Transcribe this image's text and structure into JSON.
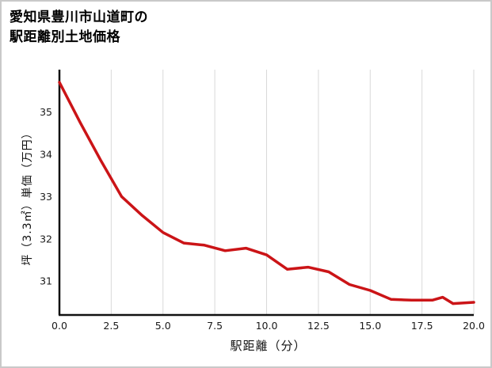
{
  "title": {
    "line1": "愛知県豊川市山道町の",
    "line2": "駅距離別土地価格"
  },
  "chart_data": {
    "type": "line",
    "title": "愛知県豊川市山道町の駅距離別土地価格",
    "xlabel": "駅距離（分）",
    "ylabel": "坪（3.3㎡）単価（万円）",
    "x": [
      0,
      1,
      2,
      3,
      4,
      5,
      6,
      7,
      8,
      9,
      10,
      11,
      12,
      13,
      14,
      15,
      16,
      17,
      18,
      18.5,
      19,
      20
    ],
    "y": [
      35.7,
      34.75,
      33.85,
      33.0,
      32.55,
      32.15,
      31.9,
      31.85,
      31.72,
      31.78,
      31.62,
      31.28,
      31.33,
      31.22,
      30.92,
      30.78,
      30.57,
      30.55,
      30.55,
      30.62,
      30.47,
      30.5
    ],
    "xlim": [
      0,
      20
    ],
    "ylim": [
      30.2,
      36.0
    ],
    "x_tick_values": [
      0,
      2.5,
      5,
      7.5,
      10,
      12.5,
      15,
      17.5,
      20
    ],
    "x_tick_labels": [
      "0.0",
      "2.5",
      "5.0",
      "7.5",
      "10.0",
      "12.5",
      "15.0",
      "17.5",
      "20.0"
    ],
    "y_tick_values": [
      31,
      32,
      33,
      34,
      35
    ],
    "y_tick_labels": [
      "31",
      "32",
      "33",
      "34",
      "35"
    ],
    "grid": "vertical",
    "legend": "none",
    "line_color": "#cb1417",
    "axis_color": "#111111",
    "grid_color": "#d9d9d9"
  }
}
